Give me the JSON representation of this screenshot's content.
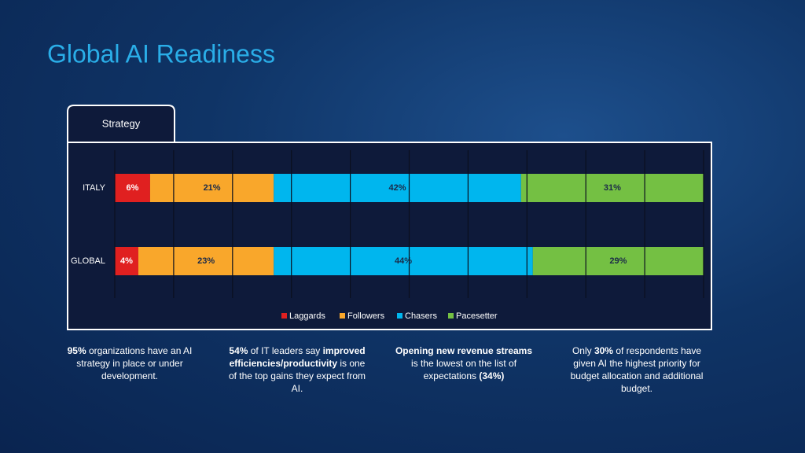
{
  "title": "Global AI Readiness",
  "tab": "Strategy",
  "chart_data": {
    "type": "stacked-barh",
    "categories": [
      "ITALY",
      "GLOBAL"
    ],
    "series": [
      {
        "name": "Laggards",
        "color": "#e02020",
        "values": [
          6,
          4
        ],
        "value_labels": [
          "6%",
          "4%"
        ]
      },
      {
        "name": "Followers",
        "color": "#f9a72b",
        "values": [
          21,
          23
        ],
        "value_labels": [
          "21%",
          "23%"
        ]
      },
      {
        "name": "Chasers",
        "color": "#00b6ee",
        "values": [
          42,
          44
        ],
        "value_labels": [
          "42%",
          "44%"
        ]
      },
      {
        "name": "Pacesetter",
        "color": "#74c043",
        "values": [
          31,
          29
        ],
        "value_labels": [
          "31%",
          "29%"
        ]
      }
    ],
    "xlim": [
      0,
      100
    ],
    "xticks": [
      0,
      10,
      20,
      30,
      40,
      50,
      60,
      70,
      80,
      90,
      100
    ],
    "grid": true,
    "legend": "bottom"
  },
  "captions": [
    [
      {
        "text": "95%",
        "bold": true
      },
      {
        "text": " organizations have an AI strategy in place or under development.",
        "bold": false
      }
    ],
    [
      {
        "text": "54%",
        "bold": true
      },
      {
        "text": " of IT leaders say ",
        "bold": false
      },
      {
        "text": "improved efficiencies/productivity",
        "bold": true
      },
      {
        "text": " is one of the top gains they expect from AI.",
        "bold": false
      }
    ],
    [
      {
        "text": "Opening new revenue streams",
        "bold": true
      },
      {
        "text": " is the lowest on the list of expectations ",
        "bold": false
      },
      {
        "text": "(34%)",
        "bold": true
      }
    ],
    [
      {
        "text": "Only ",
        "bold": false
      },
      {
        "text": "30%",
        "bold": true
      },
      {
        "text": " of respondents have given AI the highest priority for budget allocation and additional budget.",
        "bold": false
      }
    ]
  ]
}
